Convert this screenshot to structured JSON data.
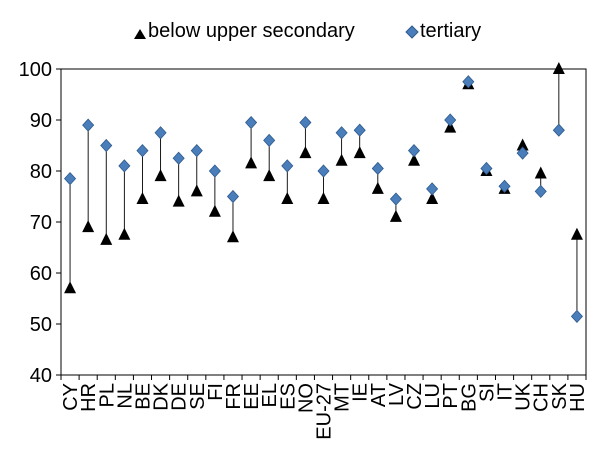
{
  "chart_data": {
    "type": "scatter",
    "title": "",
    "xlabel": "",
    "ylabel": "",
    "ylim": [
      40,
      100
    ],
    "yticks": [
      40,
      50,
      60,
      70,
      80,
      90,
      100
    ],
    "grid": false,
    "legend_position": "top",
    "categories": [
      "CY",
      "HR",
      "PL",
      "NL",
      "BE",
      "DK",
      "DE",
      "SE",
      "FI",
      "FR",
      "EE",
      "EL",
      "ES",
      "NO",
      "EU-27",
      "MT",
      "IE",
      "AT",
      "LV",
      "CZ",
      "LU",
      "PT",
      "BG",
      "SI",
      "IT",
      "UK",
      "CH",
      "SK",
      "HU"
    ],
    "series": [
      {
        "name": "below upper secondary",
        "marker": "triangle",
        "color": "#000000",
        "values": [
          57,
          69,
          66.5,
          67.5,
          74.5,
          79,
          74,
          76,
          72,
          67,
          81.5,
          79,
          74.5,
          83.5,
          74.5,
          82,
          83.5,
          76.5,
          71,
          82,
          74.5,
          88.5,
          97,
          80,
          76.5,
          85,
          79.5,
          100,
          67.5
        ]
      },
      {
        "name": "tertiary",
        "marker": "diamond",
        "color": "#4a7ebb",
        "values": [
          78.5,
          89,
          85,
          81,
          84,
          87.5,
          82.5,
          84,
          80,
          75,
          89.5,
          86,
          81,
          89.5,
          80,
          87.5,
          88,
          80.5,
          74.5,
          84,
          76.5,
          90,
          97.5,
          80.5,
          77,
          83.5,
          76,
          88,
          51.5
        ]
      }
    ]
  }
}
